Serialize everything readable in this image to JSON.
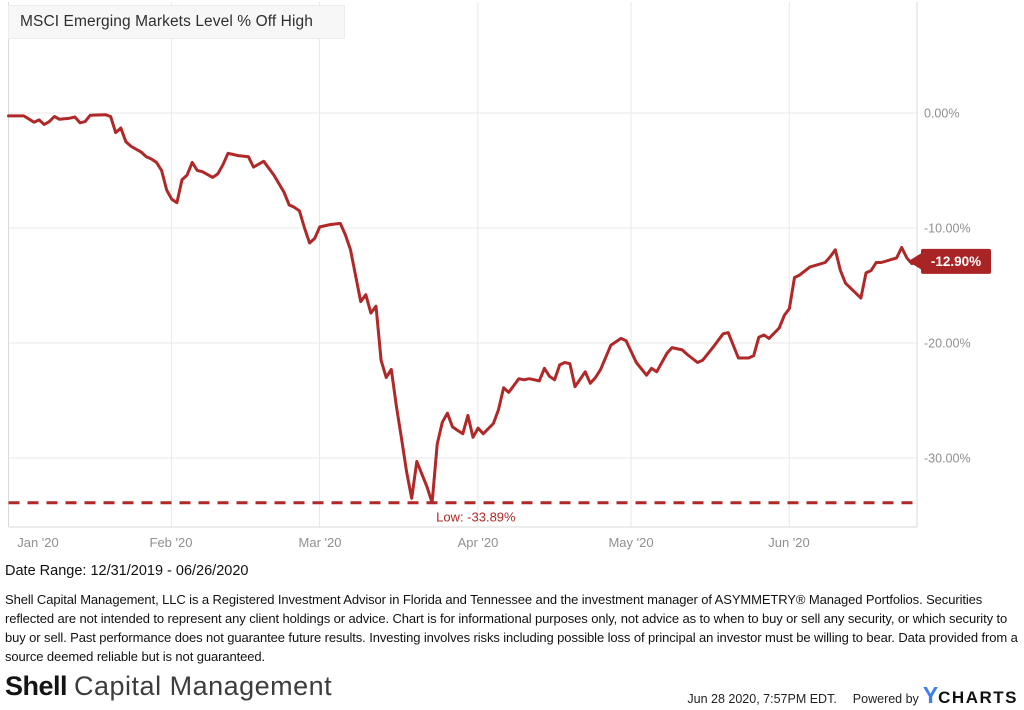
{
  "colors": {
    "line_red": "#b02828",
    "badge_red": "#a92425",
    "axis_gray": "#8f8f8f",
    "ycharts_blue": "#3d7ef0"
  },
  "chart": {
    "title": "MSCI Emerging Markets Level % Off High"
  },
  "chart_data": {
    "type": "line",
    "title": "MSCI Emerging Markets Level % Off High",
    "x_tick_labels": [
      "Jan '20",
      "Feb '20",
      "Mar '20",
      "Apr '20",
      "May '20",
      "Jun '20"
    ],
    "y_tick_labels": [
      "0.00%",
      "-10.00%",
      "-20.00%",
      "-30.00%"
    ],
    "y_tick_values": [
      0,
      -10,
      -20,
      -30
    ],
    "ylim": [
      -36.5,
      2.5
    ],
    "x_range_days": [
      0,
      178
    ],
    "date_range": [
      "12/31/2019",
      "06/26/2020"
    ],
    "grid": true,
    "legend": "none",
    "low": {
      "label": "Low: -33.89%",
      "value": -33.89,
      "day": 83
    },
    "last": {
      "label": "-12.90%",
      "value": -12.9,
      "day": 178
    },
    "series": [
      {
        "name": "MSCI Emerging Markets Level % Off High",
        "points": [
          [
            0,
            -0.25
          ],
          [
            3,
            -0.25
          ],
          [
            5,
            -0.8
          ],
          [
            6,
            -0.6
          ],
          [
            7,
            -1.0
          ],
          [
            8,
            -0.75
          ],
          [
            9,
            -0.3
          ],
          [
            10,
            -0.55
          ],
          [
            12,
            -0.45
          ],
          [
            13,
            -0.35
          ],
          [
            14,
            -0.85
          ],
          [
            15,
            -0.75
          ],
          [
            16,
            -0.2
          ],
          [
            19,
            -0.15
          ],
          [
            20,
            -0.3
          ],
          [
            21,
            -1.7
          ],
          [
            22,
            -1.3
          ],
          [
            23,
            -2.5
          ],
          [
            24,
            -2.9
          ],
          [
            26,
            -3.4
          ],
          [
            27,
            -3.8
          ],
          [
            28,
            -4.0
          ],
          [
            29,
            -4.3
          ],
          [
            30,
            -5.0
          ],
          [
            31,
            -6.7
          ],
          [
            32,
            -7.5
          ],
          [
            33,
            -7.8
          ],
          [
            34,
            -5.8
          ],
          [
            35,
            -5.4
          ],
          [
            36,
            -4.3
          ],
          [
            37,
            -5.0
          ],
          [
            38,
            -5.1
          ],
          [
            40,
            -5.6
          ],
          [
            41,
            -5.3
          ],
          [
            42,
            -4.5
          ],
          [
            43,
            -3.5
          ],
          [
            45,
            -3.7
          ],
          [
            47,
            -3.8
          ],
          [
            48,
            -4.7
          ],
          [
            50,
            -4.2
          ],
          [
            52,
            -5.4
          ],
          [
            54,
            -6.9
          ],
          [
            55,
            -8.0
          ],
          [
            56,
            -8.2
          ],
          [
            57,
            -8.5
          ],
          [
            58,
            -10.0
          ],
          [
            59,
            -11.3
          ],
          [
            60,
            -10.9
          ],
          [
            61,
            -9.9
          ],
          [
            63,
            -9.7
          ],
          [
            65,
            -9.6
          ],
          [
            66,
            -10.6
          ],
          [
            67,
            -11.9
          ],
          [
            69,
            -16.4
          ],
          [
            70,
            -15.8
          ],
          [
            71,
            -17.4
          ],
          [
            72,
            -16.8
          ],
          [
            73,
            -21.5
          ],
          [
            74,
            -23.0
          ],
          [
            75,
            -22.3
          ],
          [
            76,
            -25.5
          ],
          [
            77,
            -28.3
          ],
          [
            78,
            -31.2
          ],
          [
            79,
            -33.5
          ],
          [
            80,
            -30.3
          ],
          [
            82,
            -32.5
          ],
          [
            83,
            -33.89
          ],
          [
            84,
            -28.8
          ],
          [
            85,
            -26.9
          ],
          [
            86,
            -26.1
          ],
          [
            87,
            -27.3
          ],
          [
            88,
            -27.6
          ],
          [
            89,
            -27.9
          ],
          [
            90,
            -26.3
          ],
          [
            91,
            -28.2
          ],
          [
            92,
            -27.4
          ],
          [
            93,
            -27.9
          ],
          [
            95,
            -27.0
          ],
          [
            96,
            -25.8
          ],
          [
            97,
            -23.9
          ],
          [
            98,
            -24.3
          ],
          [
            100,
            -23.1
          ],
          [
            101,
            -23.2
          ],
          [
            102,
            -23.1
          ],
          [
            104,
            -23.3
          ],
          [
            105,
            -22.2
          ],
          [
            106,
            -22.9
          ],
          [
            107,
            -23.2
          ],
          [
            108,
            -21.9
          ],
          [
            109,
            -21.7
          ],
          [
            110,
            -21.8
          ],
          [
            111,
            -23.8
          ],
          [
            113,
            -22.5
          ],
          [
            114,
            -23.5
          ],
          [
            115,
            -23.0
          ],
          [
            116,
            -22.3
          ],
          [
            118,
            -20.2
          ],
          [
            120,
            -19.6
          ],
          [
            121,
            -19.8
          ],
          [
            123,
            -21.7
          ],
          [
            125,
            -22.8
          ],
          [
            126,
            -22.2
          ],
          [
            127,
            -22.5
          ],
          [
            129,
            -20.9
          ],
          [
            130,
            -20.4
          ],
          [
            132,
            -20.6
          ],
          [
            133,
            -21.0
          ],
          [
            135,
            -21.7
          ],
          [
            136,
            -21.5
          ],
          [
            138,
            -20.4
          ],
          [
            140,
            -19.2
          ],
          [
            141,
            -19.1
          ],
          [
            143,
            -21.3
          ],
          [
            145,
            -21.3
          ],
          [
            146,
            -21.1
          ],
          [
            147,
            -19.5
          ],
          [
            148,
            -19.3
          ],
          [
            149,
            -19.6
          ],
          [
            151,
            -18.7
          ],
          [
            152,
            -17.6
          ],
          [
            153,
            -17.0
          ],
          [
            154,
            -14.3
          ],
          [
            155,
            -14.1
          ],
          [
            157,
            -13.4
          ],
          [
            160,
            -13.0
          ],
          [
            161,
            -12.5
          ],
          [
            162,
            -11.9
          ],
          [
            163,
            -13.7
          ],
          [
            164,
            -14.8
          ],
          [
            167,
            -16.1
          ],
          [
            168,
            -13.9
          ],
          [
            169,
            -13.7
          ],
          [
            170,
            -13.0
          ],
          [
            171,
            -13.0
          ],
          [
            174,
            -12.6
          ],
          [
            175,
            -11.7
          ],
          [
            176,
            -12.6
          ],
          [
            177,
            -13.1
          ],
          [
            178,
            -12.9
          ]
        ]
      }
    ]
  },
  "footer": {
    "date_range": "Date Range: 12/31/2019 - 06/26/2020",
    "disclaimer": "Shell Capital Management, LLC is a Registered Investment Advisor in Florida and Tennessee and the investment manager of ASYMMETRY® Managed Portfolios. Securities reflected are not intended to represent any client holdings or advice. Chart is for informational purposes only, not advice as to when to buy or sell any security, or which security to buy or sell. Past performance does not guarantee future results. Investing involves risks including possible loss of principal an investor must be willing to bear. Data provided from a source deemed reliable but is not guaranteed.",
    "logo_bold": "Shell",
    "logo_rest": "Capital Management",
    "timestamp": "Jun 28 2020, 7:57PM EDT.",
    "powered_by": "Powered by",
    "ycharts_y": "Y",
    "ycharts_rest": "CHARTS"
  }
}
